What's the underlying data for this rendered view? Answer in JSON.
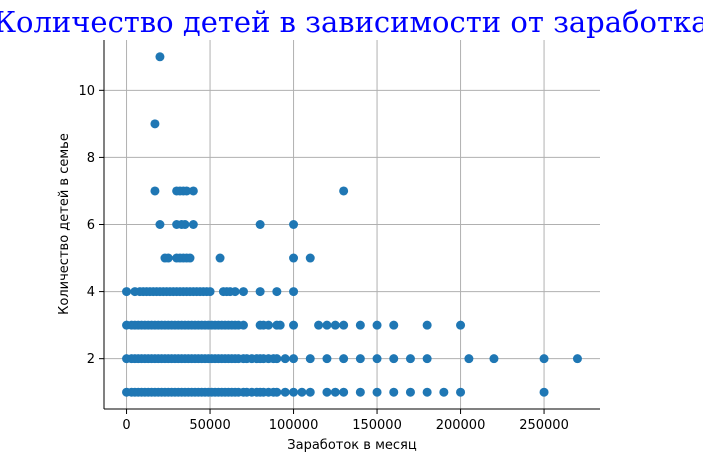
{
  "chart_data": {
    "type": "scatter",
    "title": "Количество детей в зависимости от заработка",
    "xlabel": "Заработок в месяц",
    "ylabel": "Количество детей в семье",
    "xlim": [
      -13500,
      283500
    ],
    "ylim": [
      0.5,
      11.5
    ],
    "xticks": [
      0,
      50000,
      100000,
      150000,
      200000,
      250000
    ],
    "xtick_labels": [
      "0",
      "50000",
      "100000",
      "150000",
      "200000",
      "250000"
    ],
    "yticks": [
      2,
      4,
      6,
      8,
      10
    ],
    "ytick_labels": [
      "2",
      "4",
      "6",
      "8",
      "10"
    ],
    "grid": true,
    "legend": "none",
    "colors": {
      "points": "#1f77b4",
      "title": "#0000ff",
      "grid": "#b0b0b0"
    },
    "series": [
      {
        "points": [
          [
            20000,
            11
          ],
          [
            17000,
            9
          ],
          [
            17000,
            7
          ],
          [
            30000,
            7
          ],
          [
            32000,
            7
          ],
          [
            34000,
            7
          ],
          [
            36000,
            7
          ],
          [
            40000,
            7
          ],
          [
            130000,
            7
          ],
          [
            20000,
            6
          ],
          [
            30000,
            6
          ],
          [
            33000,
            6
          ],
          [
            35000,
            6
          ],
          [
            40000,
            6
          ],
          [
            80000,
            6
          ],
          [
            100000,
            6
          ],
          [
            23000,
            5
          ],
          [
            25000,
            5
          ],
          [
            30000,
            5
          ],
          [
            32000,
            5
          ],
          [
            34000,
            5
          ],
          [
            36000,
            5
          ],
          [
            38000,
            5
          ],
          [
            56000,
            5
          ],
          [
            100000,
            5
          ],
          [
            110000,
            5
          ],
          [
            0,
            4
          ],
          [
            5000,
            4
          ],
          [
            8000,
            4
          ],
          [
            10000,
            4
          ],
          [
            12000,
            4
          ],
          [
            14000,
            4
          ],
          [
            16000,
            4
          ],
          [
            18000,
            4
          ],
          [
            20000,
            4
          ],
          [
            22000,
            4
          ],
          [
            24000,
            4
          ],
          [
            26000,
            4
          ],
          [
            28000,
            4
          ],
          [
            30000,
            4
          ],
          [
            32000,
            4
          ],
          [
            34000,
            4
          ],
          [
            36000,
            4
          ],
          [
            38000,
            4
          ],
          [
            40000,
            4
          ],
          [
            42000,
            4
          ],
          [
            44000,
            4
          ],
          [
            46000,
            4
          ],
          [
            48000,
            4
          ],
          [
            50000,
            4
          ],
          [
            58000,
            4
          ],
          [
            60000,
            4
          ],
          [
            62000,
            4
          ],
          [
            65000,
            4
          ],
          [
            70000,
            4
          ],
          [
            80000,
            4
          ],
          [
            90000,
            4
          ],
          [
            100000,
            4
          ],
          [
            0,
            3
          ],
          [
            3000,
            3
          ],
          [
            5000,
            3
          ],
          [
            7000,
            3
          ],
          [
            9000,
            3
          ],
          [
            11000,
            3
          ],
          [
            13000,
            3
          ],
          [
            15000,
            3
          ],
          [
            17000,
            3
          ],
          [
            19000,
            3
          ],
          [
            21000,
            3
          ],
          [
            23000,
            3
          ],
          [
            25000,
            3
          ],
          [
            27000,
            3
          ],
          [
            29000,
            3
          ],
          [
            31000,
            3
          ],
          [
            33000,
            3
          ],
          [
            35000,
            3
          ],
          [
            37000,
            3
          ],
          [
            39000,
            3
          ],
          [
            41000,
            3
          ],
          [
            43000,
            3
          ],
          [
            45000,
            3
          ],
          [
            47000,
            3
          ],
          [
            49000,
            3
          ],
          [
            51000,
            3
          ],
          [
            53000,
            3
          ],
          [
            55000,
            3
          ],
          [
            57000,
            3
          ],
          [
            59000,
            3
          ],
          [
            61000,
            3
          ],
          [
            63000,
            3
          ],
          [
            65000,
            3
          ],
          [
            67000,
            3
          ],
          [
            70000,
            3
          ],
          [
            80000,
            3
          ],
          [
            82000,
            3
          ],
          [
            85000,
            3
          ],
          [
            90000,
            3
          ],
          [
            92000,
            3
          ],
          [
            100000,
            3
          ],
          [
            115000,
            3
          ],
          [
            120000,
            3
          ],
          [
            125000,
            3
          ],
          [
            130000,
            3
          ],
          [
            140000,
            3
          ],
          [
            150000,
            3
          ],
          [
            160000,
            3
          ],
          [
            180000,
            3
          ],
          [
            200000,
            3
          ],
          [
            0,
            2
          ],
          [
            3000,
            2
          ],
          [
            5000,
            2
          ],
          [
            7000,
            2
          ],
          [
            9000,
            2
          ],
          [
            11000,
            2
          ],
          [
            13000,
            2
          ],
          [
            15000,
            2
          ],
          [
            17000,
            2
          ],
          [
            19000,
            2
          ],
          [
            21000,
            2
          ],
          [
            23000,
            2
          ],
          [
            25000,
            2
          ],
          [
            27000,
            2
          ],
          [
            29000,
            2
          ],
          [
            31000,
            2
          ],
          [
            33000,
            2
          ],
          [
            35000,
            2
          ],
          [
            37000,
            2
          ],
          [
            39000,
            2
          ],
          [
            41000,
            2
          ],
          [
            43000,
            2
          ],
          [
            45000,
            2
          ],
          [
            47000,
            2
          ],
          [
            49000,
            2
          ],
          [
            51000,
            2
          ],
          [
            53000,
            2
          ],
          [
            55000,
            2
          ],
          [
            57000,
            2
          ],
          [
            59000,
            2
          ],
          [
            61000,
            2
          ],
          [
            63000,
            2
          ],
          [
            65000,
            2
          ],
          [
            67000,
            2
          ],
          [
            70000,
            2
          ],
          [
            72000,
            2
          ],
          [
            75000,
            2
          ],
          [
            78000,
            2
          ],
          [
            80000,
            2
          ],
          [
            82000,
            2
          ],
          [
            85000,
            2
          ],
          [
            88000,
            2
          ],
          [
            90000,
            2
          ],
          [
            95000,
            2
          ],
          [
            100000,
            2
          ],
          [
            110000,
            2
          ],
          [
            120000,
            2
          ],
          [
            130000,
            2
          ],
          [
            140000,
            2
          ],
          [
            150000,
            2
          ],
          [
            160000,
            2
          ],
          [
            170000,
            2
          ],
          [
            180000,
            2
          ],
          [
            205000,
            2
          ],
          [
            220000,
            2
          ],
          [
            250000,
            2
          ],
          [
            270000,
            2
          ],
          [
            0,
            1
          ],
          [
            3000,
            1
          ],
          [
            5000,
            1
          ],
          [
            7000,
            1
          ],
          [
            9000,
            1
          ],
          [
            11000,
            1
          ],
          [
            13000,
            1
          ],
          [
            15000,
            1
          ],
          [
            17000,
            1
          ],
          [
            19000,
            1
          ],
          [
            21000,
            1
          ],
          [
            23000,
            1
          ],
          [
            25000,
            1
          ],
          [
            27000,
            1
          ],
          [
            29000,
            1
          ],
          [
            31000,
            1
          ],
          [
            33000,
            1
          ],
          [
            35000,
            1
          ],
          [
            37000,
            1
          ],
          [
            39000,
            1
          ],
          [
            41000,
            1
          ],
          [
            43000,
            1
          ],
          [
            45000,
            1
          ],
          [
            47000,
            1
          ],
          [
            49000,
            1
          ],
          [
            51000,
            1
          ],
          [
            53000,
            1
          ],
          [
            55000,
            1
          ],
          [
            57000,
            1
          ],
          [
            59000,
            1
          ],
          [
            61000,
            1
          ],
          [
            63000,
            1
          ],
          [
            65000,
            1
          ],
          [
            67000,
            1
          ],
          [
            70000,
            1
          ],
          [
            72000,
            1
          ],
          [
            75000,
            1
          ],
          [
            78000,
            1
          ],
          [
            80000,
            1
          ],
          [
            82000,
            1
          ],
          [
            85000,
            1
          ],
          [
            88000,
            1
          ],
          [
            90000,
            1
          ],
          [
            95000,
            1
          ],
          [
            100000,
            1
          ],
          [
            105000,
            1
          ],
          [
            110000,
            1
          ],
          [
            120000,
            1
          ],
          [
            125000,
            1
          ],
          [
            130000,
            1
          ],
          [
            140000,
            1
          ],
          [
            150000,
            1
          ],
          [
            160000,
            1
          ],
          [
            170000,
            1
          ],
          [
            180000,
            1
          ],
          [
            190000,
            1
          ],
          [
            200000,
            1
          ],
          [
            250000,
            1
          ]
        ]
      }
    ]
  }
}
